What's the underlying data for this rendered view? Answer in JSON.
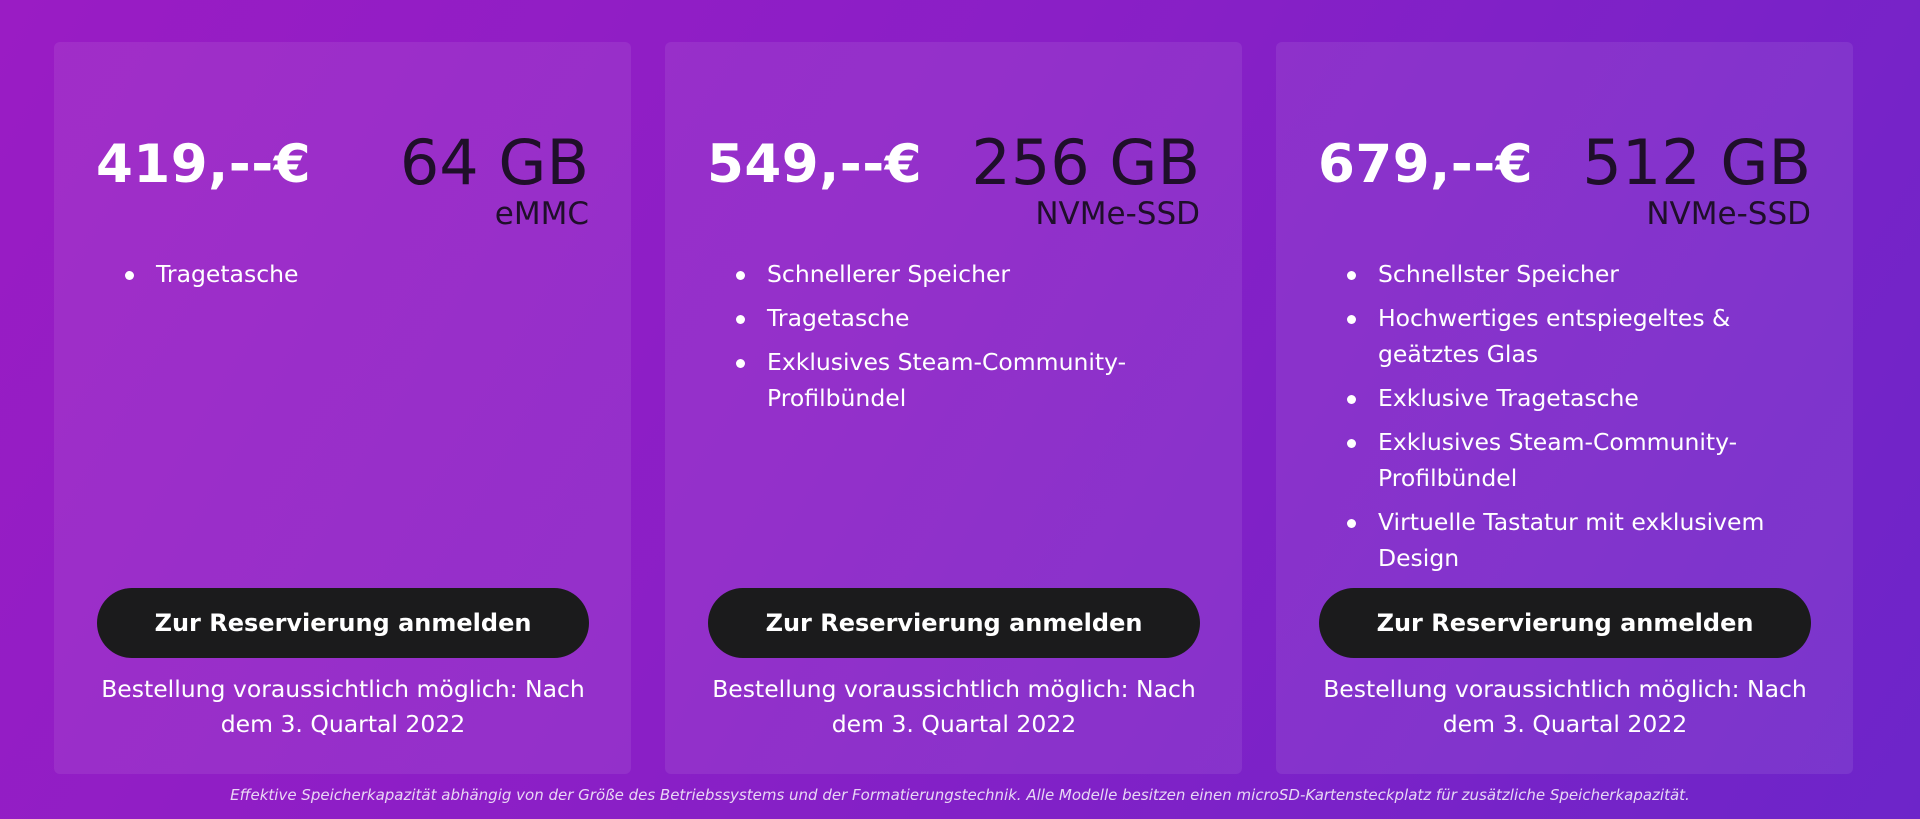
{
  "colors": {
    "background_start": "#9a1cc4",
    "background_end": "#6d25c9",
    "button_bg": "#1b1b1c",
    "capacity_text": "#1f0f2a"
  },
  "cards": [
    {
      "price": "419,--€",
      "capacity": "64 GB",
      "storage_type": "eMMC",
      "features": [
        "Tragetasche"
      ],
      "button_label": "Zur Reservierung anmelden",
      "order_note": "Bestellung voraussichtlich möglich: Nach dem 3. Quartal 2022"
    },
    {
      "price": "549,--€",
      "capacity": "256 GB",
      "storage_type": "NVMe-SSD",
      "features": [
        "Schnellerer Speicher",
        "Tragetasche",
        "Exklusives Steam-Community-Profilbündel"
      ],
      "button_label": "Zur Reservierung anmelden",
      "order_note": "Bestellung voraussichtlich möglich: Nach dem 3. Quartal 2022"
    },
    {
      "price": "679,--€",
      "capacity": "512 GB",
      "storage_type": "NVMe-SSD",
      "features": [
        "Schnellster Speicher",
        "Hochwertiges entspiegeltes & geätztes Glas",
        "Exklusive Tragetasche",
        "Exklusives Steam-Community-Profilbündel",
        "Virtuelle Tastatur mit exklusivem Design"
      ],
      "button_label": "Zur Reservierung anmelden",
      "order_note": "Bestellung voraussichtlich möglich: Nach dem 3. Quartal 2022"
    }
  ],
  "footnote": "Effektive Speicherkapazität abhängig von der Größe des Betriebssystems und der Formatierungstechnik. Alle Modelle besitzen einen microSD-Kartensteckplatz für zusätzliche Speicherkapazität."
}
